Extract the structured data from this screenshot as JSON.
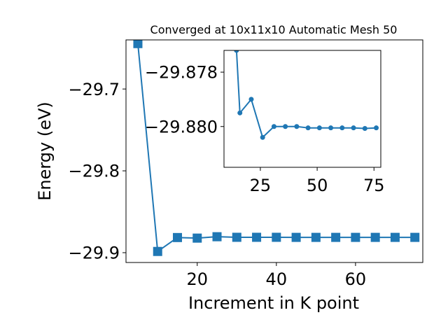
{
  "chart_data": [
    {
      "type": "line",
      "title": "Converged at 10x11x10 Automatic Mesh 50",
      "xlabel": "Increment in K point",
      "ylabel": "Energy (eV)",
      "xlim": [
        2,
        77
      ],
      "ylim": [
        -29.912,
        -29.64
      ],
      "xticks": [
        20,
        40,
        60
      ],
      "yticks": [
        -29.7,
        -29.8,
        -29.9
      ],
      "xtick_labels": [
        "20",
        "40",
        "60"
      ],
      "ytick_labels": [
        "−29.7",
        "−29.8",
        "−29.9"
      ],
      "grid": false,
      "series": [
        {
          "marker": "square",
          "color": "#1f77b4",
          "x": [
            5,
            10,
            15,
            20,
            25,
            30,
            35,
            40,
            45,
            50,
            55,
            60,
            65,
            70,
            75
          ],
          "y": [
            -29.6445,
            -29.8985,
            -29.8815,
            -29.8822,
            -29.8805,
            -29.8812,
            -29.8812,
            -29.8812,
            -29.8813,
            -29.8813,
            -29.8813,
            -29.8813,
            -29.8813,
            -29.8813,
            -29.8813
          ]
        }
      ]
    },
    {
      "type": "line",
      "title": "",
      "xlabel": "",
      "ylabel": "",
      "xlim": [
        9,
        78
      ],
      "ylim": [
        -29.8815,
        -29.8772
      ],
      "xticks": [
        25,
        50,
        75
      ],
      "yticks": [
        -29.88,
        -29.878
      ],
      "xtick_labels": [
        "25",
        "50",
        "75"
      ],
      "ytick_labels": [
        "−29.880",
        "−29.878"
      ],
      "grid": false,
      "series": [
        {
          "marker": "circle",
          "color": "#1f77b4",
          "x": [
            14.5,
            16,
            21,
            26,
            31,
            36,
            41,
            46,
            51,
            56,
            61,
            66,
            71,
            76
          ],
          "y": [
            -29.8772,
            -29.8795,
            -29.879,
            -29.8804,
            -29.88,
            -29.88,
            -29.88,
            -29.88005,
            -29.88005,
            -29.88005,
            -29.88005,
            -29.88005,
            -29.88007,
            -29.88005
          ]
        }
      ]
    }
  ]
}
